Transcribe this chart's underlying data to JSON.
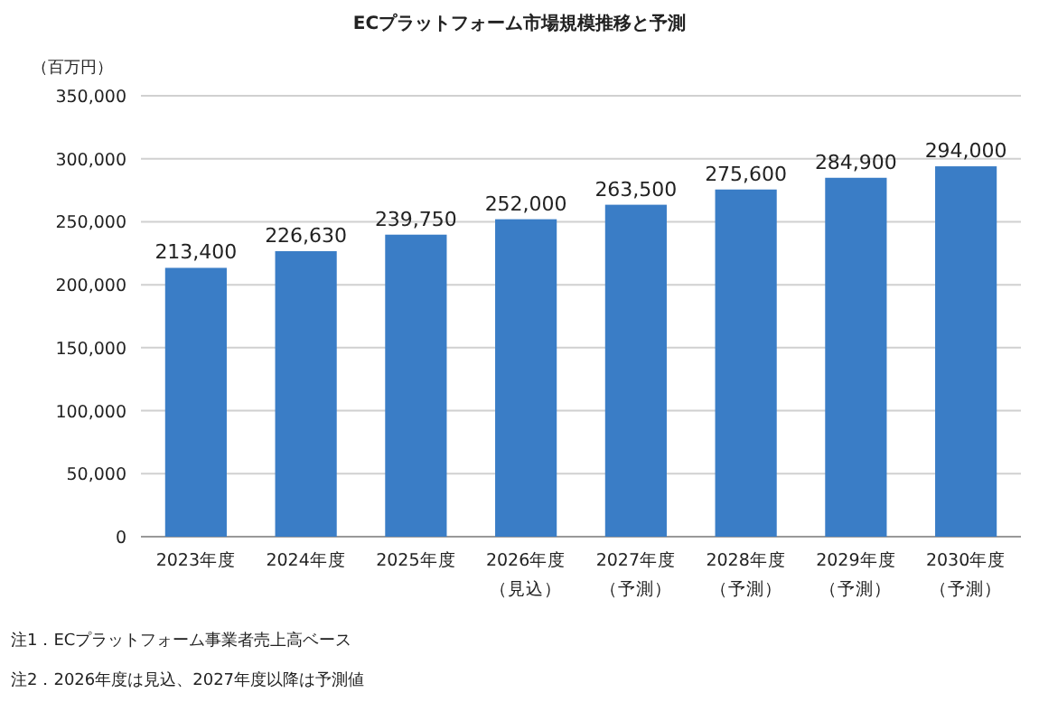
{
  "chart_data": {
    "type": "bar",
    "title": "ECプラットフォーム市場規模推移と予測",
    "ylabel": "（百万円）",
    "categories": [
      "2023年度",
      "2024年度",
      "2025年度",
      "2026年度（見込）",
      "2027年度（予測）",
      "2028年度（予測）",
      "2029年度（予測）",
      "2030年度（予測）"
    ],
    "values": [
      213400,
      226630,
      239750,
      252000,
      263500,
      275600,
      284900,
      294000
    ],
    "value_labels": [
      "213,400",
      "226,630",
      "239,750",
      "252,000",
      "263,500",
      "275,600",
      "284,900",
      "294,000"
    ],
    "color": "#3a7dc6",
    "ylim": [
      0,
      350000
    ],
    "yticks": [
      0,
      {
        "value": 50000,
        "label": "50,000"
      },
      {
        "value": 100000,
        "label": "100,000"
      },
      {
        "value": 150000,
        "label": "150,000"
      },
      {
        "value": 200000,
        "label": "200,000"
      },
      {
        "value": 250000,
        "label": "250,000"
      },
      {
        "value": 300000,
        "label": "300,000"
      },
      {
        "value": 350000,
        "label": "350,000"
      }
    ],
    "grid": "y",
    "annotations": [
      "注1．ECプラットフォーム事業者売上高ベース",
      "注2．2026年度は見込、2027年度以降は予測値"
    ]
  }
}
